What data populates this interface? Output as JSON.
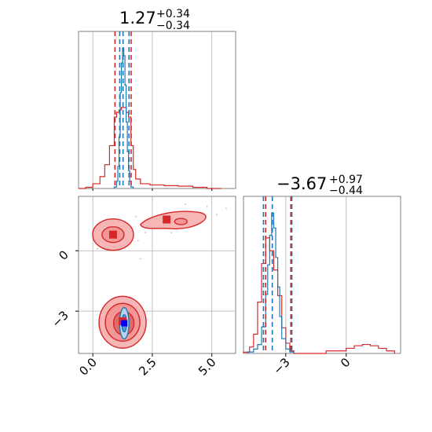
{
  "chart_data": {
    "type": "corner",
    "parameters": [
      {
        "title_value": "1.27",
        "title_plus": "+0.34",
        "title_minus": "−0.34"
      },
      {
        "title_value": "−3.67",
        "title_plus": "+0.97",
        "title_minus": "−0.44"
      }
    ],
    "x_ticks": [
      {
        "value": 0.0,
        "label": "0.0"
      },
      {
        "value": 2.5,
        "label": "2.5"
      },
      {
        "value": 5.0,
        "label": "5.0"
      }
    ],
    "y_ticks": [
      {
        "value": 0,
        "label": "0"
      },
      {
        "value": -3,
        "label": "−3"
      }
    ],
    "x2_ticks": [
      {
        "value": -3,
        "label": "−3"
      },
      {
        "value": 0,
        "label": "0"
      }
    ],
    "xlim": [
      -0.6,
      6.0
    ],
    "ylim": [
      -5.1,
      2.7
    ],
    "grid": true,
    "series": [
      {
        "color": "#d62728",
        "quantile_lines_x": [
          0.93,
          1.61
        ],
        "quantile_lines_y": [
          -4.0,
          -2.75
        ],
        "modes_2d": [
          {
            "x": 0.85,
            "y": 0.8
          },
          {
            "x": 3.1,
            "y": 1.55
          },
          {
            "x": 1.25,
            "y": -3.5
          }
        ],
        "hist_x": {
          "bins": [
            -0.6,
            -0.3,
            0.0,
            0.3,
            0.5,
            0.7,
            0.9,
            1.0,
            1.1,
            1.2,
            1.3,
            1.4,
            1.5,
            1.6,
            1.7,
            1.8,
            2.0,
            2.4,
            3.0,
            3.6,
            4.2,
            4.8,
            5.4
          ],
          "counts": [
            0.0,
            0.005,
            0.02,
            0.05,
            0.1,
            0.18,
            0.3,
            0.32,
            0.33,
            0.34,
            0.34,
            0.32,
            0.3,
            0.18,
            0.08,
            0.04,
            0.02,
            0.015,
            0.012,
            0.01,
            0.005,
            0.0
          ]
        },
        "hist_y": {
          "bins": [
            -5.1,
            -4.8,
            -4.6,
            -4.4,
            -4.2,
            -4.0,
            -3.8,
            -3.6,
            -3.4,
            -3.2,
            -3.0,
            -2.8,
            -2.6,
            -2.4,
            -1.0,
            0.0,
            0.4,
            0.8,
            1.2,
            1.6,
            2.0,
            2.4
          ],
          "counts": [
            0.01,
            0.05,
            0.15,
            0.4,
            0.7,
            0.9,
            0.8,
            0.65,
            0.45,
            0.2,
            0.08,
            0.02,
            0.0,
            0.0,
            0.02,
            0.04,
            0.06,
            0.07,
            0.06,
            0.04,
            0.02
          ]
        }
      },
      {
        "color": "#1f77b4",
        "quantile_lines_x": [
          1.13,
          1.27,
          1.52
        ],
        "quantile_lines_y": [
          -4.11,
          -3.67,
          -2.7
        ],
        "modes_2d": [
          {
            "x": 1.32,
            "y": -3.6
          }
        ],
        "hist_x": {
          "bins": [
            0.9,
            1.0,
            1.05,
            1.1,
            1.15,
            1.2,
            1.25,
            1.3,
            1.35,
            1.4,
            1.45,
            1.5,
            1.55,
            1.6,
            1.7
          ],
          "counts": [
            0.01,
            0.05,
            0.15,
            0.35,
            0.65,
            0.85,
            0.95,
            0.9,
            0.7,
            0.45,
            0.25,
            0.12,
            0.05,
            0.01
          ]
        },
        "hist_y": {
          "bins": [
            -4.9,
            -4.6,
            -4.4,
            -4.2,
            -4.0,
            -3.9,
            -3.8,
            -3.7,
            -3.6,
            -3.5,
            -3.4,
            -3.3,
            -3.2,
            -3.0,
            -2.8,
            -2.6
          ],
          "counts": [
            0.01,
            0.03,
            0.06,
            0.18,
            0.4,
            0.6,
            0.8,
            0.95,
            0.85,
            0.65,
            0.45,
            0.25,
            0.1,
            0.03,
            0.01
          ]
        }
      }
    ]
  }
}
